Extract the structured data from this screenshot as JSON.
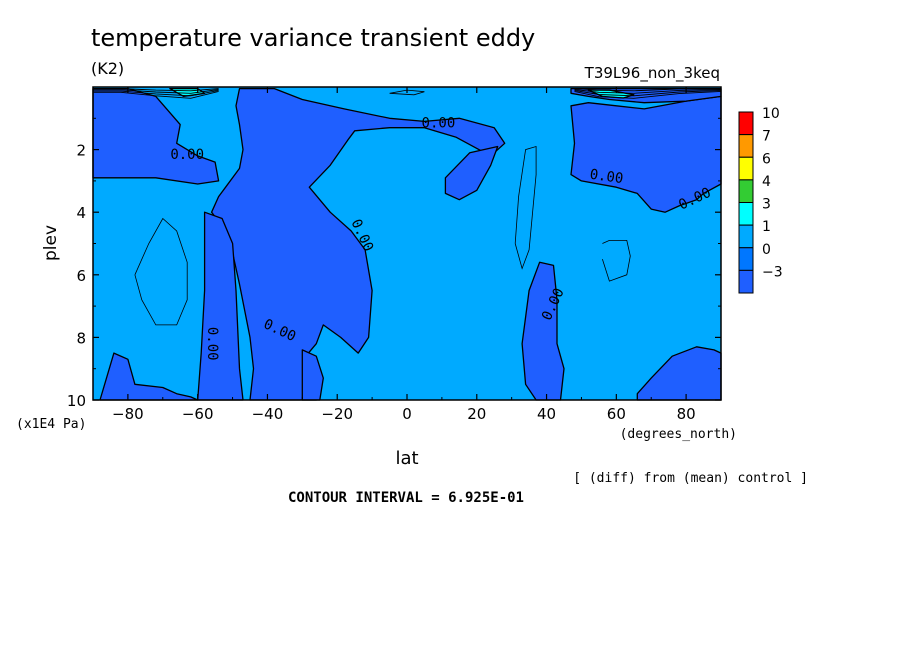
{
  "chart_data": {
    "type": "heatmap",
    "title": "temperature variance transient eddy",
    "units": "(K2)",
    "experiment": "T39L96_non_3keq",
    "xlabel": "lat",
    "xunits": "(degrees_north)",
    "ylabel": "plev",
    "yunits": "(x1E4 Pa)",
    "xlim": [
      -90,
      90
    ],
    "ylim": [
      0,
      10
    ],
    "y_inverted": true,
    "xticks": [
      "-80",
      "-60",
      "-40",
      "-20",
      "0",
      "20",
      "40",
      "60",
      "80"
    ],
    "yticks": [
      "2",
      "4",
      "6",
      "8",
      "10"
    ],
    "contour_interval_label": "CONTOUR INTERVAL = 6.925E-01",
    "note": "[ (diff) from (mean) control ]",
    "contour_labels": [
      "0.00",
      "0.00",
      "0.00",
      "0.00",
      "0.00",
      "0.00",
      "0.00",
      "0.00"
    ],
    "colorbar": {
      "levels": [
        "10",
        "7",
        "6",
        "4",
        "3",
        "1",
        "0",
        "-3"
      ],
      "colors": [
        "#ff0000",
        "#ff9900",
        "#ffff00",
        "#33cc33",
        "#00ffff",
        "#00aaff",
        "#0077ff",
        "#1f5fff"
      ]
    },
    "fill_colors": {
      "low": "#1f5fff",
      "mid": "#00aaff",
      "high": "#00ffff"
    },
    "regions": [
      {
        "level": "low",
        "pts": [
          [
            -90,
            0.05
          ],
          [
            -80,
            0.05
          ],
          [
            -72,
            0.3
          ],
          [
            -65,
            1.2
          ],
          [
            -66,
            1.8
          ],
          [
            -60,
            2.2
          ],
          [
            -55,
            2.4
          ],
          [
            -54,
            3.0
          ],
          [
            -60,
            3.1
          ],
          [
            -72,
            2.9
          ],
          [
            -82,
            2.9
          ],
          [
            -90,
            2.9
          ]
        ]
      },
      {
        "level": "low",
        "pts": [
          [
            -48,
            0.05
          ],
          [
            -38,
            0.05
          ],
          [
            -30,
            0.4
          ],
          [
            -18,
            0.7
          ],
          [
            -5,
            1.0
          ],
          [
            5,
            1.1
          ],
          [
            15,
            1.0
          ],
          [
            25,
            1.3
          ],
          [
            28,
            1.8
          ],
          [
            24,
            2.2
          ],
          [
            14,
            1.6
          ],
          [
            5,
            1.3
          ],
          [
            -5,
            1.3
          ],
          [
            -15,
            1.4
          ],
          [
            -17,
            1.7
          ],
          [
            -22,
            2.5
          ],
          [
            -28,
            3.2
          ],
          [
            -22,
            4.0
          ],
          [
            -16,
            4.6
          ],
          [
            -12,
            5.2
          ],
          [
            -10,
            6.5
          ],
          [
            -11,
            8.0
          ],
          [
            -14,
            8.5
          ],
          [
            -19,
            8.0
          ],
          [
            -24,
            7.6
          ],
          [
            -26,
            8.2
          ],
          [
            -29,
            8.6
          ],
          [
            -28,
            9.5
          ],
          [
            -26,
            10
          ],
          [
            -45,
            10
          ],
          [
            -44,
            9.0
          ],
          [
            -45,
            8.0
          ],
          [
            -48,
            6.3
          ],
          [
            -50,
            5.3
          ],
          [
            -52,
            4.6
          ],
          [
            -56,
            4.0
          ],
          [
            -54,
            3.5
          ],
          [
            -52,
            3.2
          ],
          [
            -48,
            2.6
          ],
          [
            -47,
            2.0
          ],
          [
            -48,
            1.2
          ],
          [
            -49,
            0.6
          ]
        ]
      },
      {
        "level": "low",
        "pts": [
          [
            -58,
            4.0
          ],
          [
            -53,
            4.2
          ],
          [
            -50,
            5.0
          ],
          [
            -49,
            6.5
          ],
          [
            -48,
            9.0
          ],
          [
            -47,
            10
          ],
          [
            -60,
            10
          ],
          [
            -59,
            8.5
          ],
          [
            -58,
            6.5
          ],
          [
            -58,
            5.0
          ]
        ]
      },
      {
        "level": "low",
        "pts": [
          [
            -84,
            8.5
          ],
          [
            -80,
            8.7
          ],
          [
            -78,
            9.5
          ],
          [
            -70,
            9.6
          ],
          [
            -66,
            9.8
          ],
          [
            -62,
            9.9
          ],
          [
            -60,
            10
          ],
          [
            -88,
            10
          ]
        ]
      },
      {
        "level": "low",
        "pts": [
          [
            11,
            2.9
          ],
          [
            18,
            2.1
          ],
          [
            26,
            1.9
          ],
          [
            24,
            2.5
          ],
          [
            20,
            3.3
          ],
          [
            15,
            3.6
          ],
          [
            11,
            3.4
          ]
        ]
      },
      {
        "level": "low",
        "pts": [
          [
            47,
            0.6
          ],
          [
            52,
            0.5
          ],
          [
            60,
            0.6
          ],
          [
            68,
            0.7
          ],
          [
            80,
            0.45
          ],
          [
            90,
            0.3
          ],
          [
            90,
            3.1
          ],
          [
            85,
            3.4
          ],
          [
            83,
            3.6
          ],
          [
            78,
            3.8
          ],
          [
            74,
            4.0
          ],
          [
            70,
            3.9
          ],
          [
            66,
            3.4
          ],
          [
            60,
            3.2
          ],
          [
            50,
            3.0
          ],
          [
            47,
            2.8
          ],
          [
            48,
            1.8
          ]
        ]
      },
      {
        "level": "low",
        "pts": [
          [
            47,
            0.05
          ],
          [
            90,
            0.05
          ],
          [
            90,
            0.3
          ],
          [
            80,
            0.45
          ],
          [
            68,
            0.5
          ],
          [
            58,
            0.4
          ],
          [
            52,
            0.3
          ],
          [
            47,
            0.2
          ]
        ]
      },
      {
        "level": "low",
        "pts": [
          [
            33,
            8.2
          ],
          [
            35,
            6.5
          ],
          [
            38,
            5.6
          ],
          [
            42,
            5.7
          ],
          [
            43,
            6.8
          ],
          [
            43,
            8.2
          ],
          [
            45,
            9.0
          ],
          [
            44,
            10
          ],
          [
            37,
            10
          ],
          [
            34,
            9.5
          ]
        ]
      },
      {
        "level": "low",
        "pts": [
          [
            66,
            9.8
          ],
          [
            70,
            9.3
          ],
          [
            76,
            8.6
          ],
          [
            83,
            8.3
          ],
          [
            88,
            8.4
          ],
          [
            90,
            8.5
          ],
          [
            90,
            10
          ],
          [
            66,
            10
          ]
        ]
      },
      {
        "level": "low",
        "pts": [
          [
            -30,
            8.4
          ],
          [
            -26,
            8.6
          ],
          [
            -24,
            9.3
          ],
          [
            -25,
            10
          ],
          [
            -30,
            10
          ]
        ]
      },
      {
        "level": "high",
        "pts": [
          [
            -68,
            0.05
          ],
          [
            -60,
            0.05
          ],
          [
            -58,
            0.2
          ],
          [
            -64,
            0.3
          ]
        ]
      },
      {
        "level": "high",
        "pts": [
          [
            52,
            0.1
          ],
          [
            58,
            0.1
          ],
          [
            65,
            0.25
          ],
          [
            62,
            0.35
          ],
          [
            56,
            0.3
          ]
        ]
      }
    ],
    "thin_contours": [
      [
        [
          -78,
          6.0
        ],
        [
          -74,
          5.0
        ],
        [
          -70,
          4.2
        ],
        [
          -66,
          4.6
        ],
        [
          -63,
          5.6
        ],
        [
          -63,
          6.8
        ],
        [
          -66,
          7.6
        ],
        [
          -72,
          7.6
        ],
        [
          -76,
          6.8
        ],
        [
          -78,
          6.0
        ]
      ],
      [
        [
          31,
          5.0
        ],
        [
          32,
          3.5
        ],
        [
          34,
          2.0
        ],
        [
          37,
          1.9
        ],
        [
          37,
          2.8
        ],
        [
          36,
          4.0
        ],
        [
          35,
          5.2
        ],
        [
          33,
          5.8
        ],
        [
          31,
          5.0
        ]
      ],
      [
        [
          56,
          5.0
        ],
        [
          58,
          4.9
        ],
        [
          63,
          4.9
        ],
        [
          64,
          5.4
        ],
        [
          63,
          6.0
        ],
        [
          58,
          6.2
        ],
        [
          56,
          5.5
        ]
      ],
      [
        [
          -5,
          0.2
        ],
        [
          0,
          0.1
        ],
        [
          5,
          0.15
        ],
        [
          2,
          0.25
        ],
        [
          -5,
          0.2
        ]
      ]
    ],
    "label_positions": [
      [
        -63,
        2.3
      ],
      [
        9,
        1.3
      ],
      [
        -14,
        4.8
      ],
      [
        -37,
        7.9
      ],
      [
        -57,
        8.2
      ],
      [
        43,
        7.0
      ],
      [
        57,
        3.0
      ],
      [
        83,
        3.7
      ]
    ]
  }
}
